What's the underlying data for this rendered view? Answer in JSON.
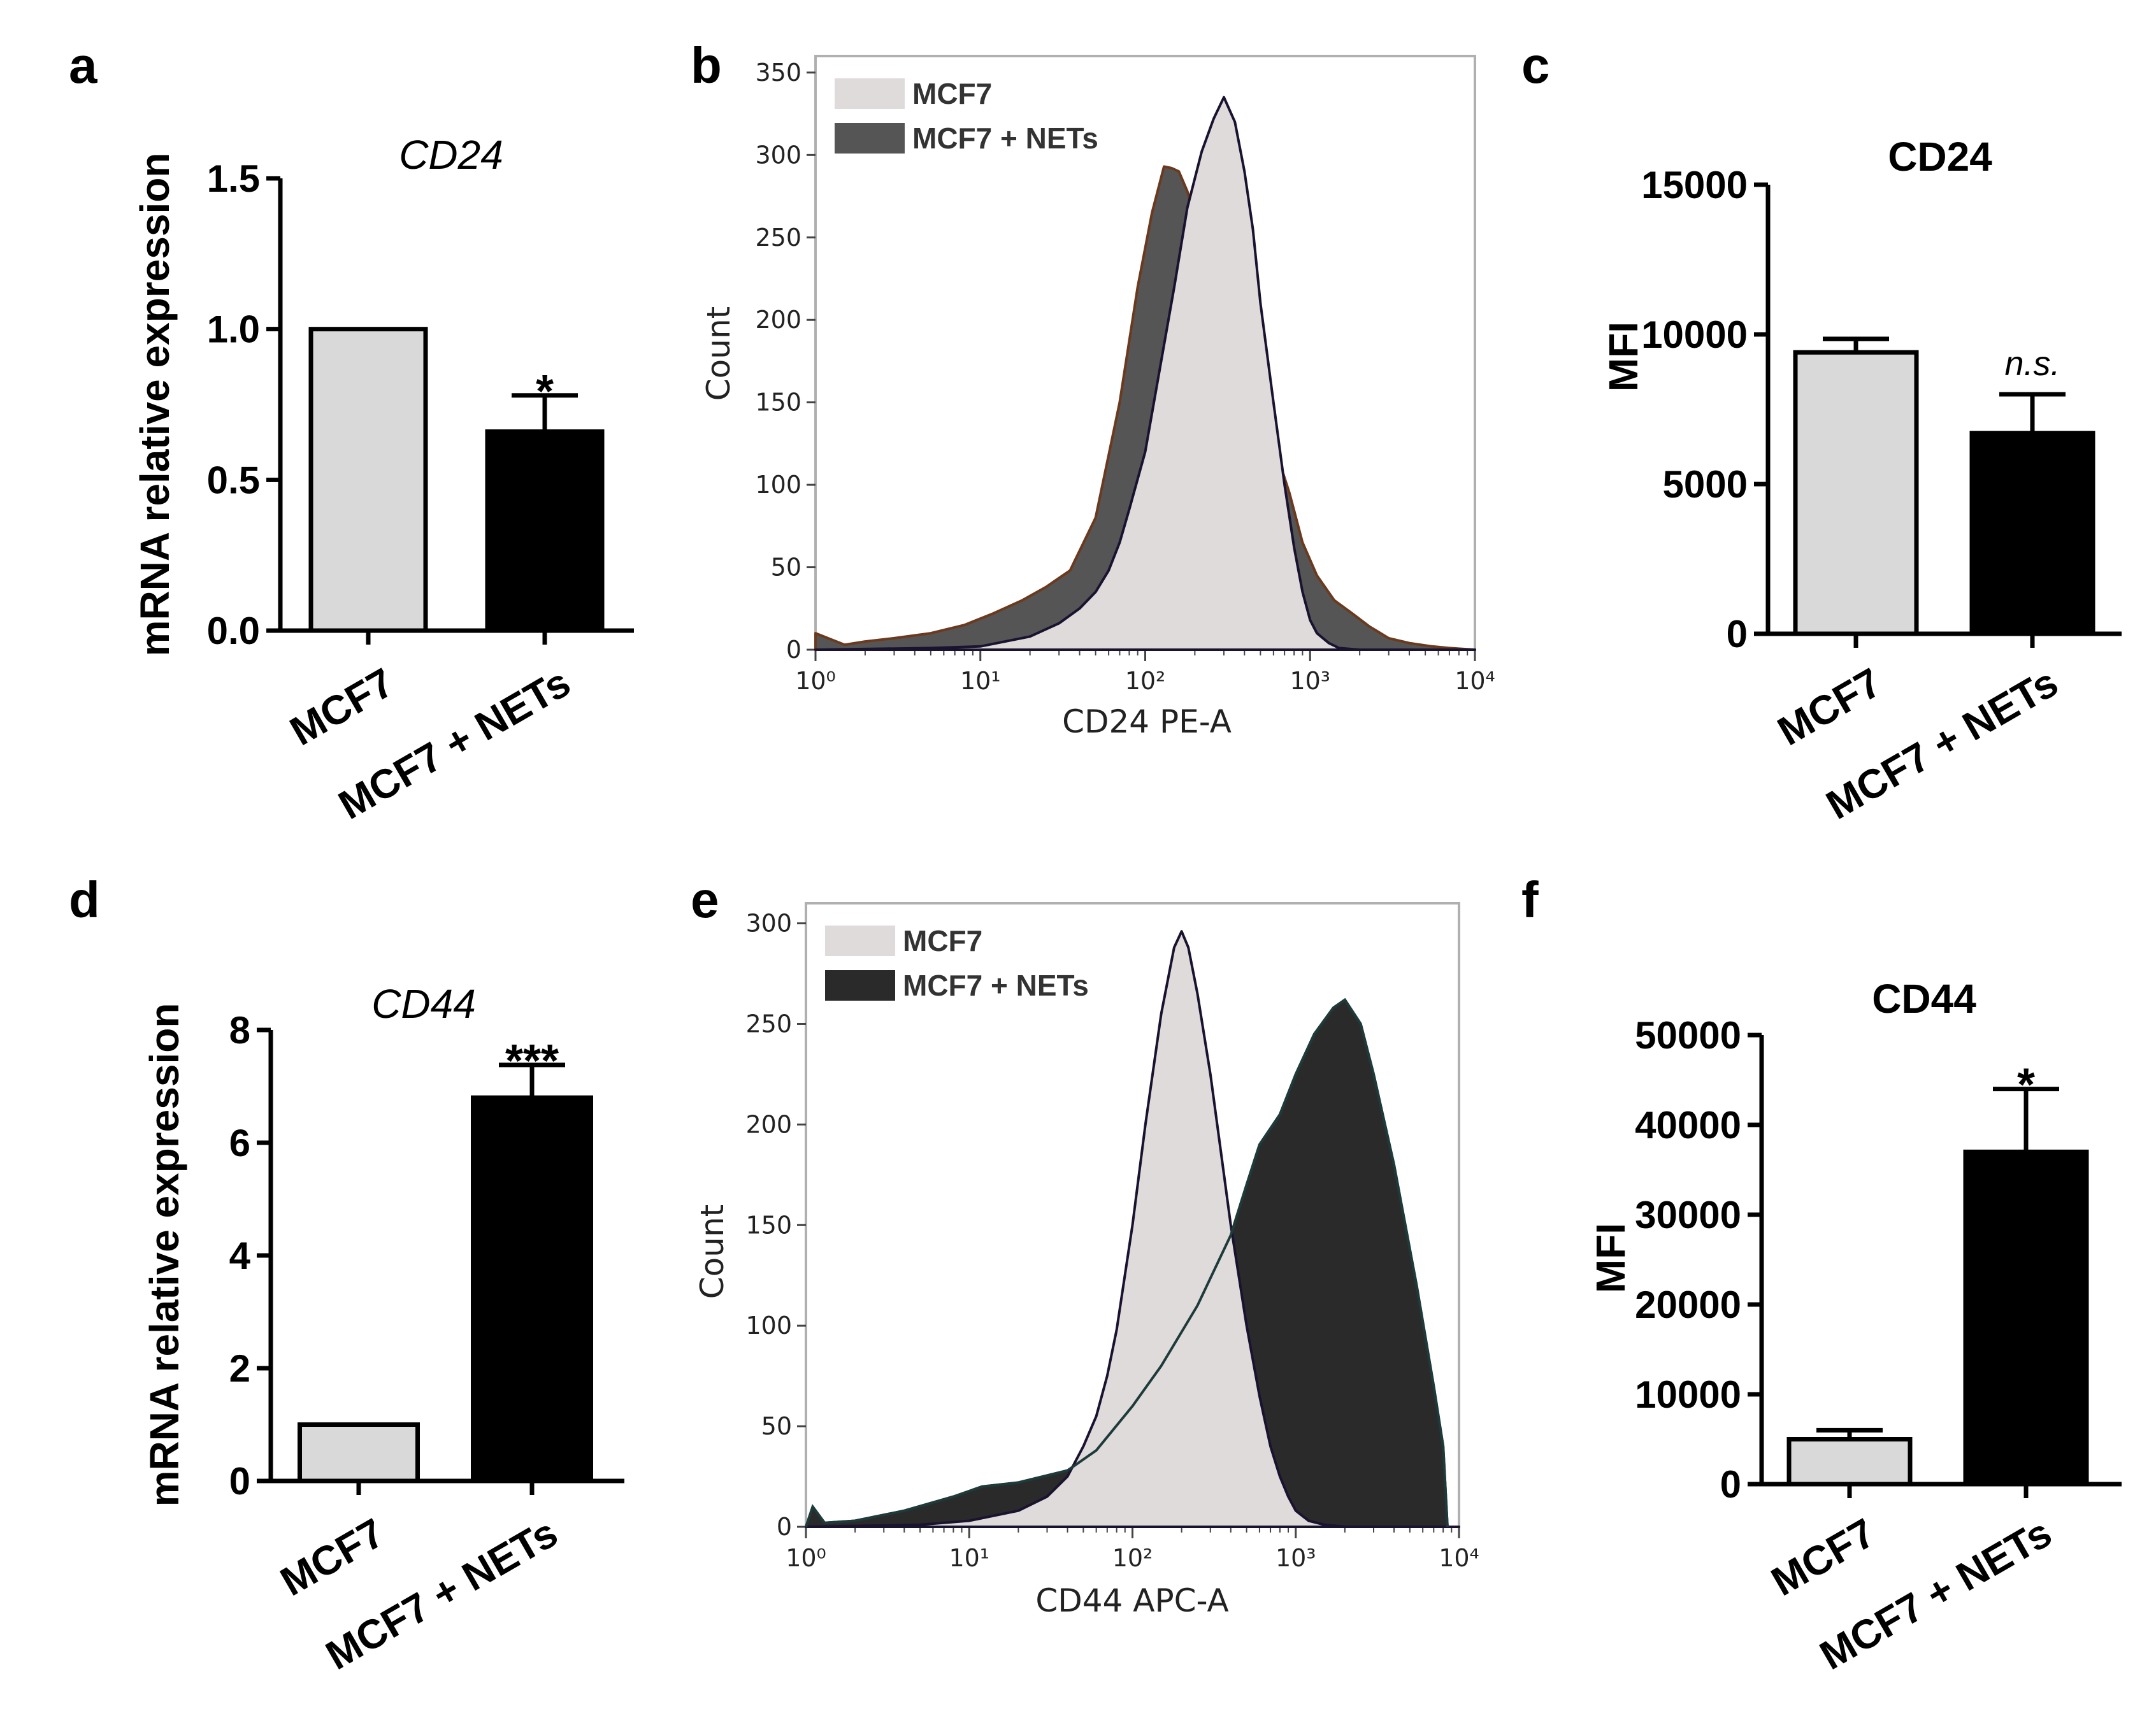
{
  "panel_labels": [
    "a",
    "b",
    "c",
    "d",
    "e",
    "f"
  ],
  "colors": {
    "mcf7_bar": "#d9d9d9",
    "nets_bar": "#000000",
    "mcf7_hist": "#e0dbdb",
    "nets_hist_b": "#555555",
    "nets_hist_e": "#2a2a2a",
    "outline_mcf7": "#1a1330",
    "outline_nets_b": "#6b3a1e",
    "outline_nets_e": "#1e3a3a"
  },
  "chart_data": [
    {
      "id": "a",
      "type": "bar",
      "title": "CD24",
      "title_style": "italic",
      "ylabel": "mRNA relative expression",
      "categories": [
        "MCF7",
        "MCF7 + NETs"
      ],
      "values": [
        1.0,
        0.66
      ],
      "errors": [
        0,
        0.12
      ],
      "ylim": [
        0,
        1.5
      ],
      "yticks": [
        0,
        0.5,
        1.0,
        1.5
      ],
      "ytick_labels": [
        "0.0",
        "0.5",
        "1.0",
        "1.5"
      ],
      "significance": [
        "",
        "*"
      ]
    },
    {
      "id": "b",
      "type": "area",
      "subtype": "histogram",
      "xlabel": "CD24 PE-A",
      "ylabel": "Count",
      "xscale": "log",
      "xlim": [
        1,
        10000
      ],
      "ylim": [
        0,
        360
      ],
      "yticks": [
        0,
        50,
        100,
        150,
        200,
        250,
        300,
        350
      ],
      "ytick_labels": [
        "0",
        "50",
        "100",
        "150",
        "200",
        "250",
        "300",
        "350"
      ],
      "xtick_labels": [
        "10⁰",
        "10¹",
        "10²",
        "10³",
        "10⁴"
      ],
      "legend": [
        "MCF7",
        "MCF7 + NETs"
      ],
      "legend_position": "top-left",
      "series": [
        {
          "name": "MCF7 + NETs",
          "x": [
            1,
            1.5,
            2,
            3,
            5,
            8,
            12,
            18,
            25,
            35,
            50,
            70,
            90,
            110,
            130,
            145,
            160,
            180,
            210,
            250,
            300,
            380,
            480,
            600,
            750,
            900,
            1100,
            1400,
            1800,
            2300,
            3000,
            4000,
            5500,
            7000,
            10000
          ],
          "values": [
            10,
            3,
            5,
            7,
            10,
            15,
            22,
            30,
            38,
            48,
            80,
            150,
            220,
            265,
            293,
            292,
            290,
            278,
            255,
            235,
            215,
            195,
            160,
            125,
            95,
            65,
            45,
            30,
            22,
            14,
            7,
            4,
            2,
            1,
            0
          ]
        },
        {
          "name": "MCF7",
          "x": [
            1,
            5,
            10,
            20,
            30,
            40,
            50,
            60,
            70,
            80,
            100,
            120,
            150,
            180,
            220,
            260,
            300,
            350,
            400,
            450,
            500,
            600,
            700,
            800,
            900,
            1000,
            1100,
            1300,
            1500,
            2000,
            10000
          ],
          "values": [
            0,
            1,
            2,
            8,
            16,
            25,
            35,
            48,
            65,
            85,
            120,
            165,
            220,
            268,
            302,
            322,
            335,
            320,
            290,
            255,
            210,
            150,
            100,
            62,
            35,
            18,
            10,
            4,
            1,
            0,
            0
          ]
        }
      ]
    },
    {
      "id": "c",
      "type": "bar",
      "title": "CD24",
      "title_style": "bold",
      "ylabel": "MFI",
      "categories": [
        "MCF7",
        "MCF7 + NETs"
      ],
      "values": [
        9400,
        6700
      ],
      "errors": [
        450,
        1300
      ],
      "ylim": [
        0,
        15000
      ],
      "yticks": [
        0,
        5000,
        10000,
        15000
      ],
      "ytick_labels": [
        "0",
        "5000",
        "10000",
        "15000"
      ],
      "significance": [
        "",
        "n.s."
      ]
    },
    {
      "id": "d",
      "type": "bar",
      "title": "CD44",
      "title_style": "italic",
      "ylabel": "mRNA relative expression",
      "categories": [
        "MCF7",
        "MCF7 + NETs"
      ],
      "values": [
        1.0,
        6.8
      ],
      "errors": [
        0,
        0.58
      ],
      "ylim": [
        0,
        8
      ],
      "yticks": [
        0,
        2,
        4,
        6,
        8
      ],
      "ytick_labels": [
        "0",
        "2",
        "4",
        "6",
        "8"
      ],
      "significance": [
        "",
        "***"
      ]
    },
    {
      "id": "e",
      "type": "area",
      "subtype": "histogram",
      "xlabel": "CD44 APC-A",
      "ylabel": "Count",
      "xscale": "log",
      "xlim": [
        1,
        10000
      ],
      "ylim": [
        0,
        310
      ],
      "yticks": [
        0,
        50,
        100,
        150,
        200,
        250,
        300
      ],
      "ytick_labels": [
        "0",
        "50",
        "100",
        "150",
        "200",
        "250",
        "300"
      ],
      "xtick_labels": [
        "10⁰",
        "10¹",
        "10²",
        "10³",
        "10⁴"
      ],
      "legend": [
        "MCF7",
        "MCF7 + NETs"
      ],
      "legend_position": "top-left",
      "series": [
        {
          "name": "MCF7 + NETs",
          "x": [
            1,
            1.1,
            1.3,
            2,
            4,
            8,
            12,
            20,
            40,
            60,
            100,
            150,
            250,
            400,
            500,
            600,
            800,
            1000,
            1300,
            1700,
            2000,
            2500,
            3000,
            4000,
            5500,
            7000,
            8000,
            8500
          ],
          "values": [
            0,
            10,
            2,
            3,
            8,
            15,
            20,
            22,
            28,
            38,
            60,
            80,
            110,
            145,
            170,
            190,
            205,
            225,
            245,
            258,
            262,
            250,
            225,
            180,
            120,
            70,
            40,
            0
          ]
        },
        {
          "name": "MCF7",
          "x": [
            1,
            5,
            10,
            20,
            30,
            40,
            50,
            60,
            70,
            80,
            100,
            120,
            150,
            180,
            200,
            220,
            250,
            300,
            350,
            400,
            500,
            600,
            700,
            800,
            900,
            1000,
            1200,
            1500,
            2000,
            10000
          ],
          "values": [
            0,
            1,
            3,
            8,
            15,
            25,
            40,
            55,
            75,
            98,
            150,
            200,
            255,
            288,
            296,
            288,
            265,
            225,
            185,
            150,
            100,
            65,
            40,
            25,
            15,
            8,
            3,
            1,
            0,
            0
          ]
        }
      ]
    },
    {
      "id": "f",
      "type": "bar",
      "title": "CD44",
      "title_style": "bold",
      "ylabel": "MFI",
      "categories": [
        "MCF7",
        "MCF7 + NETs"
      ],
      "values": [
        5000,
        37000
      ],
      "errors": [
        1000,
        7000
      ],
      "ylim": [
        0,
        50000
      ],
      "yticks": [
        0,
        10000,
        20000,
        30000,
        40000,
        50000
      ],
      "ytick_labels": [
        "0",
        "10000",
        "20000",
        "30000",
        "40000",
        "50000"
      ],
      "significance": [
        "",
        "*"
      ]
    }
  ]
}
